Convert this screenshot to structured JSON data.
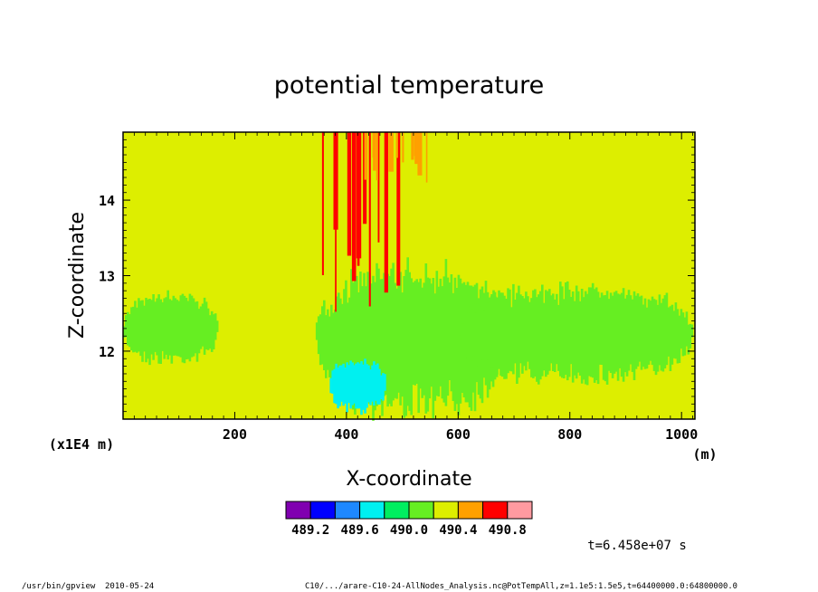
{
  "chart_data": {
    "type": "heatmap",
    "title": "potential temperature",
    "xlabel": "X-coordinate",
    "ylabel": "Z-coordinate",
    "x_unit_label": "(m)",
    "y_scale_label": "(x1E4 m)",
    "xlim": [
      0,
      1024
    ],
    "ylim": [
      11.1,
      14.9
    ],
    "x_ticks": [
      200,
      400,
      600,
      800,
      1000
    ],
    "y_ticks": [
      12,
      13,
      14
    ],
    "background_value": 490.2,
    "colorbar": {
      "colors": [
        "#8000b0",
        "#0000ff",
        "#1e88ff",
        "#00f0f0",
        "#00ee60",
        "#66ee22",
        "#ddee00",
        "#ffa000",
        "#ff0000",
        "#ff9aa0"
      ],
      "labels": [
        "489.2",
        "489.6",
        "490.0",
        "490.4",
        "490.8"
      ],
      "bounds": [
        489.0,
        489.2,
        489.4,
        489.6,
        489.8,
        490.0,
        490.2,
        490.4,
        490.6,
        490.8,
        491.0
      ]
    },
    "features": [
      {
        "name": "cool-layer-left",
        "value": 490.05,
        "x": [
          0,
          170
        ],
        "z": [
          11.85,
          12.75
        ]
      },
      {
        "name": "cool-layer-mid",
        "value": 490.05,
        "x": [
          345,
          690
        ],
        "z": [
          11.2,
          13.1
        ]
      },
      {
        "name": "cool-layer-right",
        "value": 490.05,
        "x": [
          600,
          1020
        ],
        "z": [
          11.6,
          12.85
        ]
      },
      {
        "name": "cool-core-mid",
        "value": 489.75,
        "x": [
          370,
          470
        ],
        "z": [
          11.2,
          11.9
        ]
      },
      {
        "name": "warm-plume",
        "value": 490.65,
        "x": [
          355,
          490
        ],
        "z": [
          12.5,
          14.9
        ]
      },
      {
        "name": "warm-plume-edge",
        "value": 490.45,
        "x": [
          430,
          565
        ],
        "z": [
          14.2,
          14.9
        ]
      }
    ]
  },
  "timestamp_label": "t=6.458e+07 s",
  "footer": {
    "program": "/usr/bin/gpview",
    "date": "2010-05-24",
    "command": "C10/.../arare-C10-24-AllNodes_Analysis.nc@PotTempAll,z=1.1e5:1.5e5,t=64400000.0:64800000.0"
  }
}
